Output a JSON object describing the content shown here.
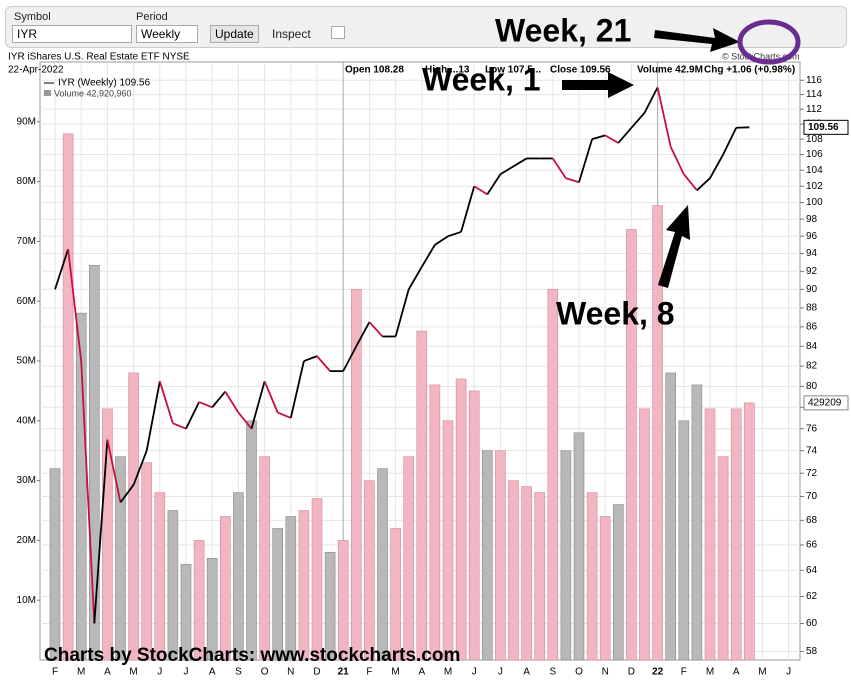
{
  "toolbar": {
    "symbol_label": "Symbol",
    "symbol": "IYR",
    "period_label": "Period",
    "period": "Weekly",
    "update": "Update",
    "inspect": "Inspect"
  },
  "chart_data": {
    "type": "line",
    "title": "IYR iShares U.S. Real Estate ETF NYSE",
    "subtitle": "22-Apr-2022",
    "copyright": "© StockCharts.com",
    "quote": [
      "Open 108.28",
      "High ...13",
      "Low 107.5...",
      "Close 109.56",
      "Volume 42.9M",
      "Chg +1.06 (+0.98%)"
    ],
    "annotations": [
      "Week, 21",
      "Week, 1",
      "Week, 8",
      "Charts by StockCharts:  www.stockcharts.com"
    ],
    "last_labels": [
      "109.56",
      "429209"
    ],
    "categories": [
      "F",
      null,
      "M",
      null,
      "A",
      null,
      "M",
      null,
      "J",
      null,
      "J",
      null,
      "A",
      null,
      "S",
      null,
      "O",
      null,
      "N",
      null,
      "D",
      null,
      "21",
      null,
      "F",
      null,
      "M",
      null,
      "A",
      null,
      "M",
      null,
      "J",
      null,
      "J",
      null,
      "A",
      null,
      "S",
      null,
      "O",
      null,
      "N",
      null,
      "D",
      null,
      "22",
      null,
      "F",
      null,
      "M",
      null,
      "A",
      null,
      "M",
      null,
      "J",
      null
    ],
    "series": [
      {
        "name": "IYR (Weekly) 109.56",
        "color": "#000000",
        "down_color": "#c8103c",
        "values": [
          90,
          94.5,
          82.5,
          60,
          75,
          69.5,
          71,
          74,
          80.5,
          76.5,
          76,
          78.5,
          78,
          79.5,
          77.5,
          76,
          80.5,
          77.5,
          77,
          82.5,
          83,
          81.5,
          81.5,
          84,
          86.5,
          85,
          85,
          90,
          92.5,
          95,
          96,
          96.5,
          102,
          101,
          103.5,
          104.5,
          105.5,
          105.5,
          105.5,
          103,
          102.5,
          108,
          108.5,
          107.5,
          109.5,
          111.5,
          115,
          107,
          103.5,
          101.5,
          103,
          106,
          109.5,
          109.56,
          null,
          null,
          null,
          null
        ]
      },
      {
        "name": "Volume 42,920,960",
        "color": "#b8b8b8",
        "up_color": "#f2b6c2",
        "axis": "y2",
        "values": [
          32000000,
          88000000,
          58000000,
          66000000,
          42000000,
          34000000,
          48000000,
          33000000,
          28000000,
          25000000,
          16000000,
          20000000,
          17000000,
          24000000,
          28000000,
          40000000,
          34000000,
          22000000,
          24000000,
          25000000,
          27000000,
          18000000,
          20000000,
          62000000,
          30000000,
          32000000,
          22000000,
          34000000,
          55000000,
          46000000,
          40000000,
          47000000,
          45000000,
          35000000,
          35000000,
          30000000,
          29000000,
          28000000,
          62000000,
          35000000,
          38000000,
          28000000,
          24000000,
          26000000,
          72000000,
          42000000,
          76000000,
          48000000,
          40000000,
          46000000,
          42000000,
          34000000,
          42000000,
          43000000,
          null,
          null,
          null,
          null
        ]
      }
    ],
    "log_scale": true,
    "ylim": [
      57.4,
      118.6
    ],
    "yticks": [
      58,
      60,
      62,
      64,
      66,
      68,
      70,
      72,
      74,
      76,
      78,
      80,
      82,
      84,
      86,
      88,
      90,
      92,
      94,
      96,
      98,
      100,
      102,
      104,
      106,
      108,
      110,
      112,
      114,
      116
    ],
    "y2lim": [
      0,
      100000000
    ],
    "y2ticks": [
      {
        "value": 10000000,
        "label": "10M"
      },
      {
        "value": 20000000,
        "label": "20M"
      },
      {
        "value": 30000000,
        "label": "30M"
      },
      {
        "value": 40000000,
        "label": "40M"
      },
      {
        "value": 50000000,
        "label": "50M"
      },
      {
        "value": 60000000,
        "label": "60M"
      },
      {
        "value": 70000000,
        "label": "70M"
      },
      {
        "value": 80000000,
        "label": "80M"
      },
      {
        "value": 90000000,
        "label": "90M"
      }
    ],
    "grid": true
  }
}
